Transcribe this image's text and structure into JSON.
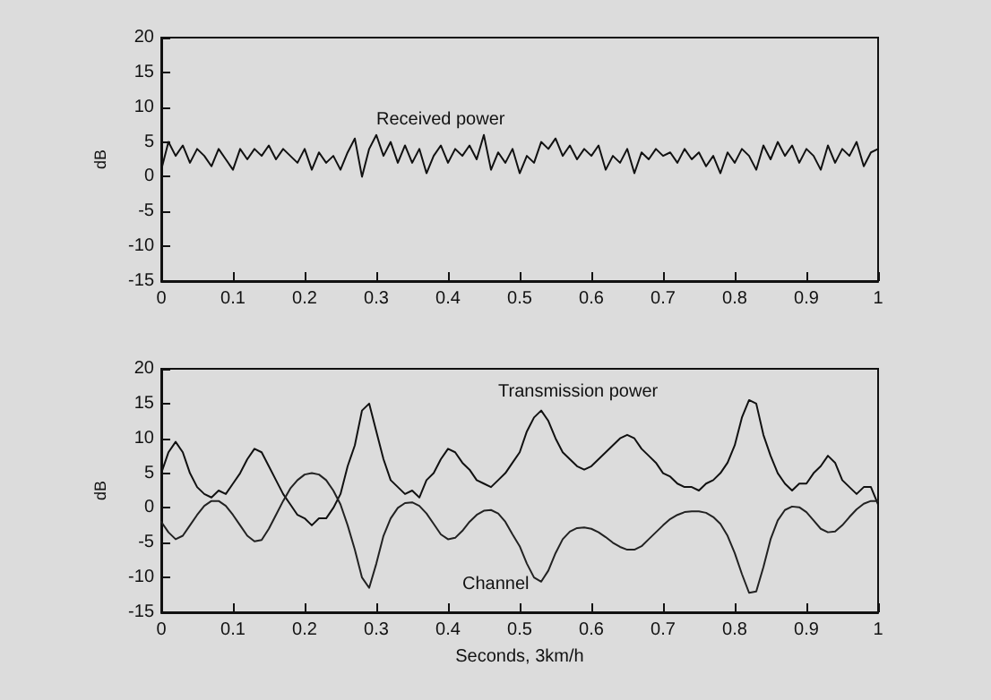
{
  "chart_data": [
    {
      "type": "line",
      "ylabel": "dB",
      "xlim": [
        0,
        1
      ],
      "xticks": [
        0,
        0.1,
        0.2,
        0.3,
        0.4,
        0.5,
        0.6,
        0.7,
        0.8,
        0.9,
        1
      ],
      "ylim": [
        -15,
        20
      ],
      "yticks": [
        -15,
        -10,
        -5,
        0,
        5,
        10,
        15,
        20
      ],
      "grid": false,
      "legend": false,
      "marker": "none",
      "x": [
        0,
        0.01,
        0.02,
        0.03,
        0.04,
        0.05,
        0.06,
        0.07,
        0.08,
        0.09,
        0.1,
        0.11,
        0.12,
        0.13,
        0.14,
        0.15,
        0.16,
        0.17,
        0.18,
        0.19,
        0.2,
        0.21,
        0.22,
        0.23,
        0.24,
        0.25,
        0.26,
        0.27,
        0.28,
        0.29,
        0.3,
        0.31,
        0.32,
        0.33,
        0.34,
        0.35,
        0.36,
        0.37,
        0.38,
        0.39,
        0.4,
        0.41,
        0.42,
        0.43,
        0.44,
        0.45,
        0.46,
        0.47,
        0.48,
        0.49,
        0.5,
        0.51,
        0.52,
        0.53,
        0.54,
        0.55,
        0.56,
        0.57,
        0.58,
        0.59,
        0.6,
        0.61,
        0.62,
        0.63,
        0.64,
        0.65,
        0.66,
        0.67,
        0.68,
        0.69,
        0.7,
        0.71,
        0.72,
        0.73,
        0.74,
        0.75,
        0.76,
        0.77,
        0.78,
        0.79,
        0.8,
        0.81,
        0.82,
        0.83,
        0.84,
        0.85,
        0.86,
        0.87,
        0.88,
        0.89,
        0.9,
        0.91,
        0.92,
        0.93,
        0.94,
        0.95,
        0.96,
        0.97,
        0.98,
        0.99,
        1
      ],
      "series": [
        {
          "name": "Received power",
          "color": "#111111",
          "values": [
            1,
            5,
            3,
            4.5,
            2,
            4,
            3,
            1.5,
            4,
            2.5,
            1,
            4,
            2.5,
            4,
            3,
            4.5,
            2.5,
            4,
            3,
            2,
            4,
            1,
            3.5,
            2,
            3,
            1,
            3.5,
            5.5,
            0,
            4,
            6,
            3,
            5,
            2,
            4.5,
            2,
            4,
            0.5,
            3,
            4.5,
            2,
            4,
            3,
            4.5,
            2.5,
            6,
            1,
            3.5,
            2,
            4,
            0.5,
            3,
            2,
            5,
            4,
            5.5,
            3,
            4.5,
            2.5,
            4,
            3,
            4.5,
            1,
            3,
            2,
            4,
            0.5,
            3.5,
            2.5,
            4,
            3,
            3.5,
            2,
            4,
            2.5,
            3.5,
            1.5,
            3,
            0.5,
            3.5,
            2,
            4,
            3,
            1,
            4.5,
            2.5,
            5,
            3,
            4.5,
            2,
            4,
            3,
            1,
            4.5,
            2,
            4,
            3,
            5,
            1.5,
            3.5,
            4
          ]
        }
      ]
    },
    {
      "type": "line",
      "xlabel": "Seconds, 3km/h",
      "ylabel": "dB",
      "xlim": [
        0,
        1
      ],
      "xticks": [
        0,
        0.1,
        0.2,
        0.3,
        0.4,
        0.5,
        0.6,
        0.7,
        0.8,
        0.9,
        1
      ],
      "ylim": [
        -15,
        20
      ],
      "yticks": [
        -15,
        -10,
        -5,
        0,
        5,
        10,
        15,
        20
      ],
      "grid": false,
      "legend": false,
      "marker": "none",
      "x": [
        0,
        0.01,
        0.02,
        0.03,
        0.04,
        0.05,
        0.06,
        0.07,
        0.08,
        0.09,
        0.1,
        0.11,
        0.12,
        0.13,
        0.14,
        0.15,
        0.16,
        0.17,
        0.18,
        0.19,
        0.2,
        0.21,
        0.22,
        0.23,
        0.24,
        0.25,
        0.26,
        0.27,
        0.28,
        0.29,
        0.3,
        0.31,
        0.32,
        0.33,
        0.34,
        0.35,
        0.36,
        0.37,
        0.38,
        0.39,
        0.4,
        0.41,
        0.42,
        0.43,
        0.44,
        0.45,
        0.46,
        0.47,
        0.48,
        0.49,
        0.5,
        0.51,
        0.52,
        0.53,
        0.54,
        0.55,
        0.56,
        0.57,
        0.58,
        0.59,
        0.6,
        0.61,
        0.62,
        0.63,
        0.64,
        0.65,
        0.66,
        0.67,
        0.68,
        0.69,
        0.7,
        0.71,
        0.72,
        0.73,
        0.74,
        0.75,
        0.76,
        0.77,
        0.78,
        0.79,
        0.8,
        0.81,
        0.82,
        0.83,
        0.84,
        0.85,
        0.86,
        0.87,
        0.88,
        0.89,
        0.9,
        0.91,
        0.92,
        0.93,
        0.94,
        0.95,
        0.96,
        0.97,
        0.98,
        0.99,
        1
      ],
      "series": [
        {
          "name": "Transmission power",
          "color": "#111111",
          "values": [
            5,
            8,
            9.5,
            8,
            5,
            3,
            2,
            1.5,
            2.5,
            2,
            3.5,
            5,
            7,
            8.5,
            8,
            6,
            4,
            2,
            0.5,
            -1,
            -1.5,
            -2.5,
            -1.5,
            -1.5,
            0,
            2,
            6,
            9,
            14,
            15,
            11,
            7,
            4,
            3,
            2,
            2.5,
            1.5,
            4,
            5,
            7,
            8.5,
            8,
            6.5,
            5.5,
            4,
            3.5,
            3,
            4,
            5,
            6.5,
            8,
            11,
            13,
            14,
            12.5,
            10,
            8,
            7,
            6,
            5.5,
            6,
            7,
            8,
            9,
            10,
            10.5,
            10,
            8.5,
            7.5,
            6.5,
            5,
            4.5,
            3.5,
            3,
            3,
            2.5,
            3.5,
            4,
            5,
            6.5,
            9,
            13,
            15.5,
            15,
            10.5,
            7.5,
            5,
            3.5,
            2.5,
            3.5,
            3.5,
            5,
            6,
            7.5,
            6.5,
            4,
            3,
            2,
            3,
            3,
            0.5
          ]
        },
        {
          "name": "Channel",
          "color": "#222222",
          "values": [
            -2,
            -3.5,
            -4.5,
            -4,
            -2.5,
            -1,
            0.3,
            1,
            1,
            0.3,
            -1,
            -2.5,
            -4,
            -4.8,
            -4.6,
            -3,
            -1,
            1,
            2.8,
            4,
            4.8,
            5,
            4.8,
            4,
            2.5,
            0.5,
            -2.5,
            -6,
            -10,
            -11.5,
            -8,
            -4,
            -1.5,
            0,
            0.7,
            0.8,
            0.3,
            -0.8,
            -2.3,
            -3.8,
            -4.5,
            -4.3,
            -3.3,
            -2,
            -1,
            -0.4,
            -0.3,
            -0.8,
            -2,
            -3.8,
            -5.5,
            -8,
            -10,
            -10.6,
            -9,
            -6.5,
            -4.5,
            -3.4,
            -2.9,
            -2.8,
            -3,
            -3.5,
            -4.2,
            -5,
            -5.6,
            -6,
            -6,
            -5.5,
            -4.5,
            -3.5,
            -2.5,
            -1.6,
            -1,
            -0.6,
            -0.5,
            -0.5,
            -0.7,
            -1.3,
            -2.3,
            -4,
            -6.5,
            -9.5,
            -12.2,
            -12,
            -8.5,
            -4.5,
            -1.8,
            -0.3,
            0.2,
            0.1,
            -0.6,
            -1.8,
            -3,
            -3.5,
            -3.4,
            -2.5,
            -1.3,
            -0.2,
            0.6,
            1,
            1
          ]
        }
      ]
    }
  ]
}
